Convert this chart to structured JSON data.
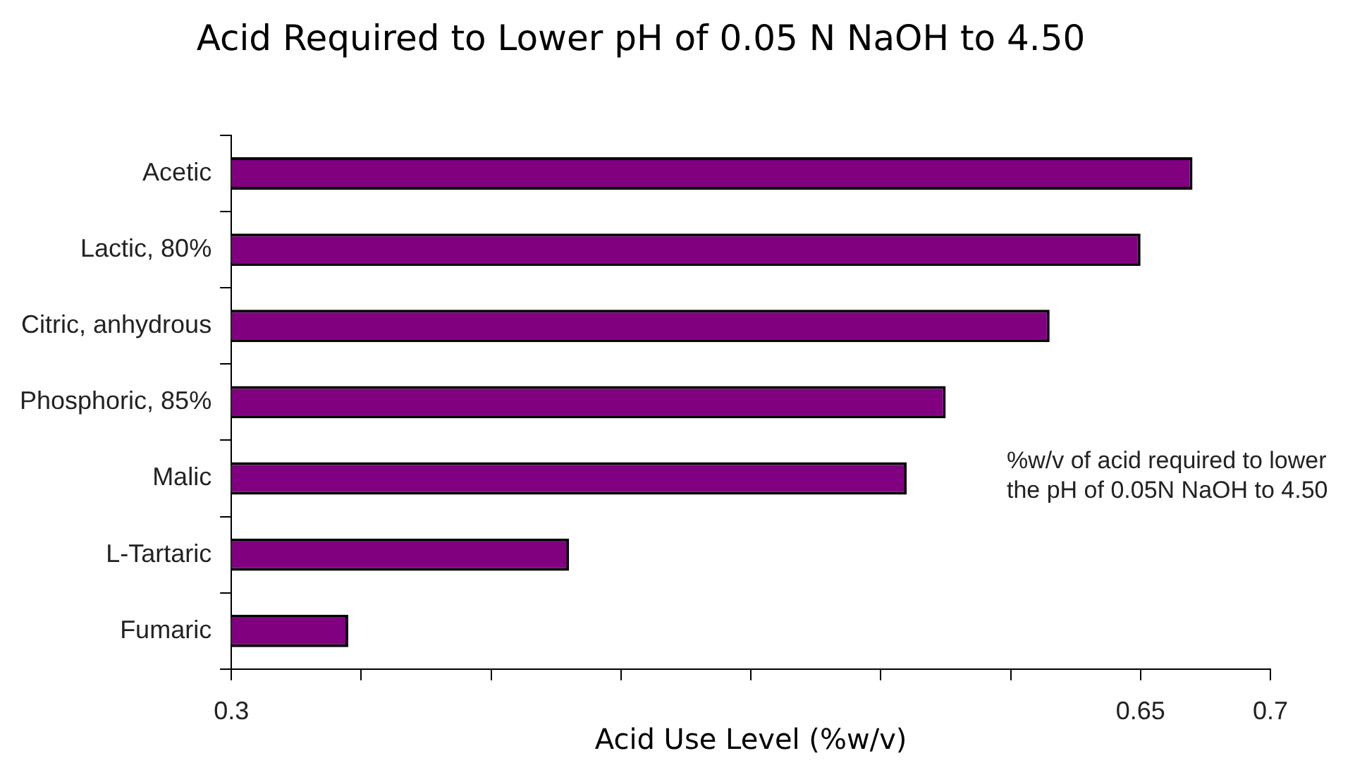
{
  "chart_data": {
    "type": "bar",
    "orientation": "horizontal",
    "title": "Acid Required to Lower pH of 0.05 N NaOH to 4.50",
    "xlabel": "Acid Use Level (%w/v)",
    "categories": [
      "Acetic",
      "Lactic, 80%",
      "Citric, anhydrous",
      "Phosphoric, 85%",
      "Malic",
      "L-Tartaric",
      "Fumaric"
    ],
    "values": [
      0.67,
      0.65,
      0.615,
      0.575,
      0.56,
      0.43,
      0.345
    ],
    "color": "#800080",
    "xlim": [
      0.3,
      0.7
    ],
    "xticks": [
      0.3,
      {
        "value": 0.35,
        "label": null
      },
      {
        "value": 0.4,
        "label": null
      },
      {
        "value": 0.45,
        "label": null
      },
      {
        "value": 0.5,
        "label": null
      },
      {
        "value": 0.55,
        "label": null
      },
      {
        "value": 0.6,
        "label": null
      },
      0.65,
      0.7
    ],
    "grid": false,
    "annotations": [
      "%w/v of acid required to lower the pH of 0.05N NaOH to 4.50"
    ]
  }
}
